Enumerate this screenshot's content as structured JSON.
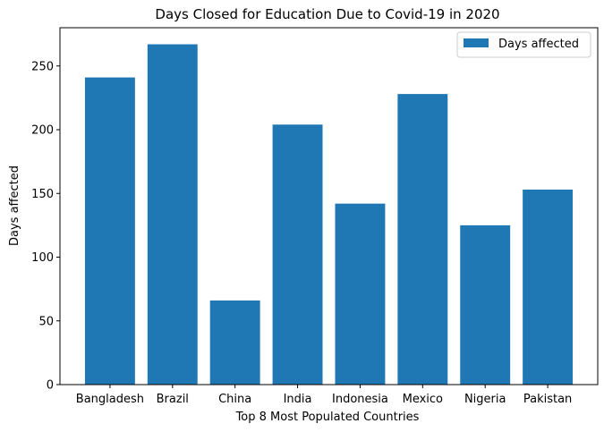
{
  "chart_data": {
    "type": "bar",
    "title": "Days Closed for Education Due to Covid-19 in 2020",
    "xlabel": "Top 8 Most Populated Countries",
    "ylabel": "Days affected",
    "categories": [
      "Bangladesh",
      "Brazil",
      "China",
      "India",
      "Indonesia",
      "Mexico",
      "Nigeria",
      "Pakistan"
    ],
    "series": [
      {
        "name": "Days affected",
        "values": [
          241,
          267,
          66,
          204,
          142,
          228,
          125,
          153
        ]
      }
    ],
    "ylim": [
      0,
      280
    ],
    "yticks": [
      0,
      50,
      100,
      150,
      200,
      250
    ],
    "ytick_labels": [
      "0",
      "50",
      "100",
      "150",
      "200",
      "250"
    ],
    "grid": false,
    "legend_position": "top-right",
    "bar_color": "#1f77b4"
  }
}
